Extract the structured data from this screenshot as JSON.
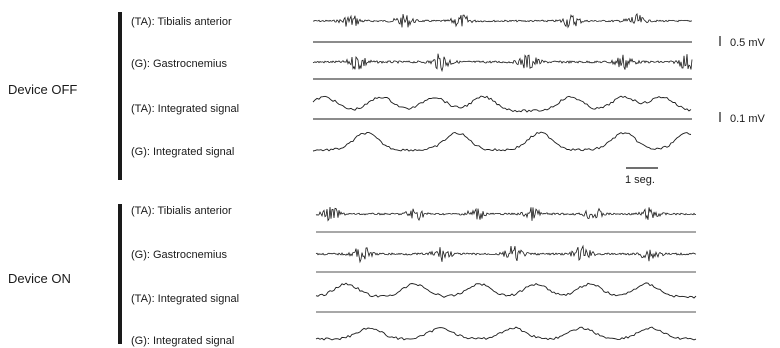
{
  "sections": [
    {
      "label": "Device OFF",
      "rows": [
        {
          "label": "(TA): Tibialis anterior",
          "kind": "emg",
          "bursts": [
            0.1,
            0.24,
            0.39,
            0.68,
            0.85
          ],
          "amp": 7,
          "underline": "#1a1a1a"
        },
        {
          "label": "(G): Gastrocnemius",
          "kind": "emg",
          "bursts": [
            0.12,
            0.34,
            0.57,
            0.82,
            0.99
          ],
          "amp": 9,
          "underline": "#1a1a1a"
        },
        {
          "label": "(TA): Integrated signal",
          "kind": "env",
          "bursts": [
            0.03,
            0.18,
            0.32,
            0.45,
            0.68,
            0.82,
            0.92
          ],
          "amp": 14,
          "underline": "#1a1a1a"
        },
        {
          "label": "(G): Integrated signal",
          "kind": "env",
          "bursts": [
            0.14,
            0.38,
            0.6,
            0.82,
            0.99
          ],
          "amp": 17,
          "underline": null
        }
      ]
    },
    {
      "label": "Device ON",
      "rows": [
        {
          "label": "(TA): Tibialis anterior",
          "kind": "emg",
          "bursts": [
            0.04,
            0.26,
            0.42,
            0.57,
            0.73,
            0.88
          ],
          "amp": 7,
          "underline": "#a8a8a8"
        },
        {
          "label": "(G): Gastrocnemius",
          "kind": "emg",
          "bursts": [
            0.12,
            0.33,
            0.52,
            0.7,
            0.88
          ],
          "amp": 8,
          "underline": "#a8a8a8"
        },
        {
          "label": "(TA): Integrated signal",
          "kind": "env",
          "bursts": [
            0.08,
            0.26,
            0.43,
            0.58,
            0.72,
            0.87
          ],
          "amp": 13,
          "underline": "#a8a8a8"
        },
        {
          "label": "(G): Integrated signal",
          "kind": "env",
          "bursts": [
            0.14,
            0.33,
            0.52,
            0.7,
            0.88
          ],
          "amp": 11,
          "underline": null
        }
      ]
    }
  ],
  "scale_bars": {
    "emg": "0.5 mV",
    "integrated": "0.1 mV",
    "time": "1 seg."
  },
  "colors": {
    "trace": "#1a1a1a",
    "off_baseline": "#1a1a1a",
    "on_baseline": "#a8a8a8"
  }
}
